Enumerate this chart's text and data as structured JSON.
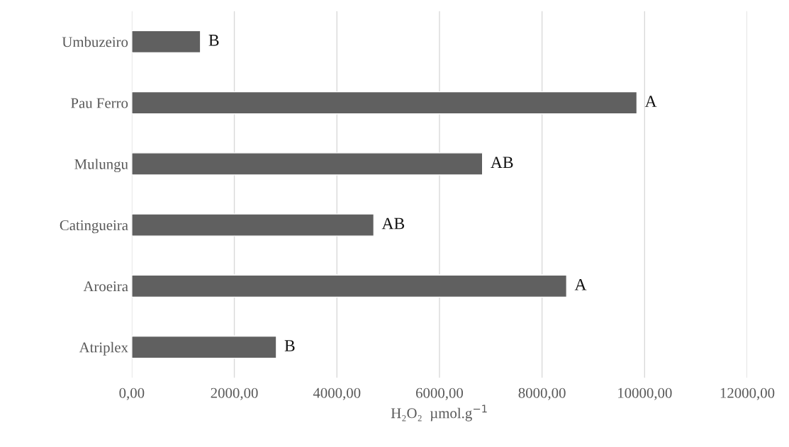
{
  "chart_data": {
    "type": "bar",
    "orientation": "horizontal",
    "xlabel": "H₂O₂  µmol.g$^{−1}$",
    "categories": [
      "Umbuzeiro",
      "Pau Ferro",
      "Mulungu",
      "Catingueira",
      "Aroeira",
      "Atriplex"
    ],
    "values": [
      1340,
      9850,
      6840,
      4720,
      8480,
      2820
    ],
    "value_labels": [
      "B",
      "A",
      "AB",
      "AB",
      "A",
      "B"
    ],
    "color": "#606060",
    "xlim": [
      0,
      12000
    ],
    "xticks": [
      {
        "value": 0,
        "label": "0,00"
      },
      {
        "value": 2000,
        "label": "2000,00"
      },
      {
        "value": 4000,
        "label": "4000,00"
      },
      {
        "value": 6000,
        "label": "6000,00"
      },
      {
        "value": 8000,
        "label": "8000,00"
      },
      {
        "value": 10000,
        "label": "10000,00"
      },
      {
        "value": 12000,
        "label": "12000,00"
      }
    ],
    "grid": "x",
    "legend": false
  }
}
